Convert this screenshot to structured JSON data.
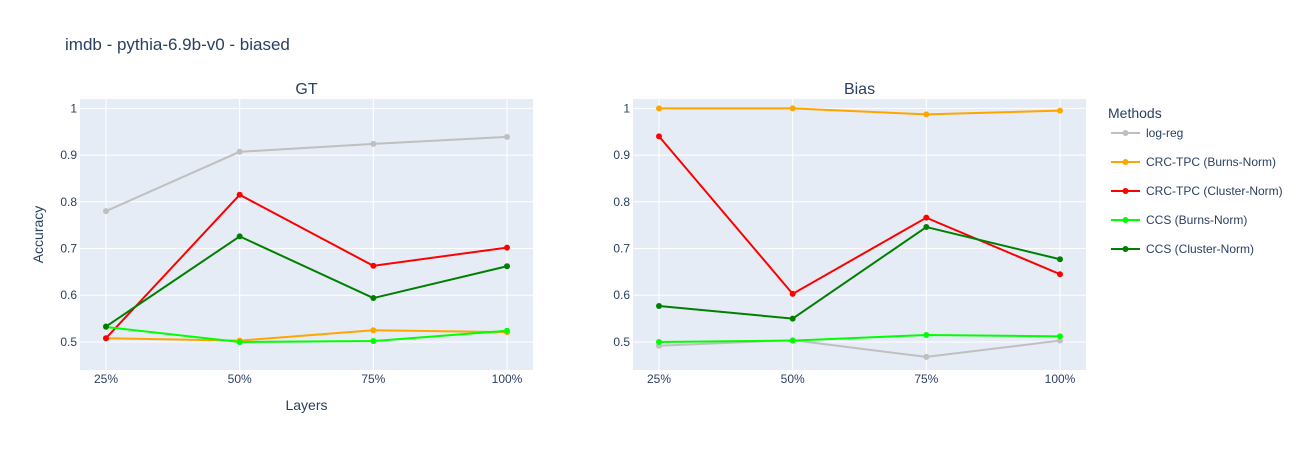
{
  "chart_data": {
    "type": "line",
    "title": "imdb - pythia-6.9b-v0 - biased",
    "ylabel": "Accuracy",
    "ylim": [
      0.44,
      1.02
    ],
    "yticks": [
      "0.5",
      "0.6",
      "0.7",
      "0.8",
      "0.9",
      "1"
    ],
    "ytick_values": [
      0.5,
      0.6,
      0.7,
      0.8,
      0.9,
      1.0
    ],
    "grid": true,
    "legend_title": "Methods",
    "legend_position": "right",
    "legend": [
      {
        "name": "log-reg",
        "color": "#bfbfbf"
      },
      {
        "name": "CRC-TPC (Burns-Norm)",
        "color": "#ffa500"
      },
      {
        "name": "CRC-TPC (Cluster-Norm)",
        "color": "#ff0000"
      },
      {
        "name": "CCS (Burns-Norm)",
        "color": "#00ff00"
      },
      {
        "name": "CCS (Cluster-Norm)",
        "color": "#008000"
      }
    ],
    "subplots": [
      {
        "title": "GT",
        "xlabel": "Layers",
        "ylabel": "Accuracy",
        "categories": [
          "25%",
          "50%",
          "75%",
          "100%"
        ],
        "series": [
          {
            "name": "log-reg",
            "color": "#bfbfbf",
            "values": [
              0.78,
              0.907,
              0.924,
              0.939
            ]
          },
          {
            "name": "CRC-TPC (Burns-Norm)",
            "color": "#ffa500",
            "values": [
              0.508,
              0.503,
              0.525,
              0.521
            ]
          },
          {
            "name": "CRC-TPC (Cluster-Norm)",
            "color": "#ff0000",
            "values": [
              0.508,
              0.815,
              0.663,
              0.702
            ]
          },
          {
            "name": "CCS (Burns-Norm)",
            "color": "#00ff00",
            "values": [
              0.532,
              0.5,
              0.502,
              0.524
            ]
          },
          {
            "name": "CCS (Cluster-Norm)",
            "color": "#008000",
            "values": [
              0.533,
              0.726,
              0.594,
              0.662
            ]
          }
        ]
      },
      {
        "title": "Bias",
        "xlabel": "",
        "ylabel": "",
        "categories": [
          "25%",
          "50%",
          "75%",
          "100%"
        ],
        "series": [
          {
            "name": "log-reg",
            "color": "#bfbfbf",
            "values": [
              0.492,
              0.504,
              0.468,
              0.503
            ]
          },
          {
            "name": "CRC-TPC (Burns-Norm)",
            "color": "#ffa500",
            "values": [
              1.0,
              1.0,
              0.987,
              0.995
            ]
          },
          {
            "name": "CRC-TPC (Cluster-Norm)",
            "color": "#ff0000",
            "values": [
              0.94,
              0.603,
              0.766,
              0.645
            ]
          },
          {
            "name": "CCS (Burns-Norm)",
            "color": "#00ff00",
            "values": [
              0.5,
              0.503,
              0.515,
              0.512
            ]
          },
          {
            "name": "CCS (Cluster-Norm)",
            "color": "#008000",
            "values": [
              0.577,
              0.55,
              0.746,
              0.677
            ]
          }
        ]
      }
    ]
  }
}
